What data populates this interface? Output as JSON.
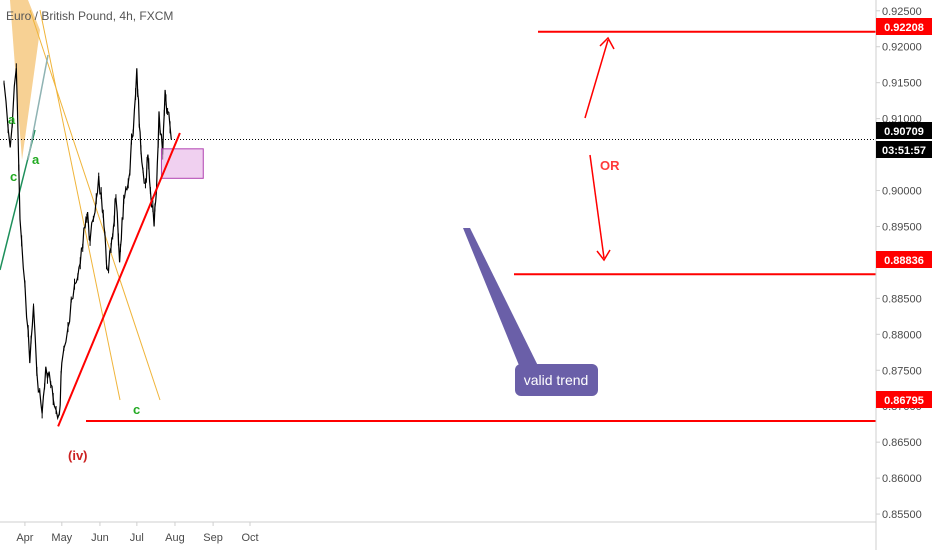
{
  "chart_data": {
    "type": "line",
    "title": "Euro / British Pound, 4h, FXCM",
    "symbol": "EURGBP",
    "interval": "4h",
    "source": "FXCM",
    "x_labels": [
      "Apr",
      "May",
      "Jun",
      "Jul",
      "Aug",
      "Sep",
      "Oct"
    ],
    "y_ticks": [
      "0.92500",
      "0.92000",
      "0.91500",
      "0.91000",
      "0.90000",
      "0.89500",
      "0.89000",
      "0.88500",
      "0.88000",
      "0.87500",
      "0.87000",
      "0.86500",
      "0.86000",
      "0.85500"
    ],
    "ylim": [
      0.85,
      0.9265
    ],
    "grid": false,
    "price_series": {
      "name": "EUR/GBP",
      "x": [
        "2019-03-15",
        "2019-03-20",
        "2019-03-25",
        "2019-03-28",
        "2019-04-01",
        "2019-04-05",
        "2019-04-08",
        "2019-04-12",
        "2019-04-15",
        "2019-04-18",
        "2019-04-22",
        "2019-04-25",
        "2019-04-29",
        "2019-05-01",
        "2019-05-06",
        "2019-05-10",
        "2019-05-14",
        "2019-05-17",
        "2019-05-20",
        "2019-05-22",
        "2019-05-24",
        "2019-05-28",
        "2019-05-31",
        "2019-06-03",
        "2019-06-05",
        "2019-06-07",
        "2019-06-10",
        "2019-06-12",
        "2019-06-14",
        "2019-06-17",
        "2019-06-19",
        "2019-06-21",
        "2019-06-24",
        "2019-06-26",
        "2019-06-28",
        "2019-07-01",
        "2019-07-03",
        "2019-07-05",
        "2019-07-08",
        "2019-07-10",
        "2019-07-12",
        "2019-07-15",
        "2019-07-17",
        "2019-07-19",
        "2019-07-22",
        "2019-07-24",
        "2019-07-26",
        "2019-07-29"
      ],
      "values": [
        0.915,
        0.906,
        0.917,
        0.896,
        0.887,
        0.876,
        0.884,
        0.872,
        0.869,
        0.8755,
        0.873,
        0.87,
        0.869,
        0.876,
        0.881,
        0.885,
        0.888,
        0.892,
        0.895,
        0.897,
        0.893,
        0.897,
        0.902,
        0.897,
        0.894,
        0.889,
        0.892,
        0.895,
        0.899,
        0.89,
        0.896,
        0.899,
        0.901,
        0.905,
        0.908,
        0.917,
        0.909,
        0.904,
        0.901,
        0.905,
        0.9,
        0.895,
        0.9,
        0.911,
        0.905,
        0.914,
        0.911,
        0.9071
      ]
    },
    "price_levels": [
      {
        "label": "0.92208",
        "value": 0.92208,
        "color": "#ff0000"
      },
      {
        "label": "0.90709",
        "value": 0.90709,
        "color": "#000000"
      },
      {
        "label": "0.88836",
        "value": 0.88836,
        "color": "#ff0000"
      },
      {
        "label": "0.86795",
        "value": 0.86795,
        "color": "#ff0000"
      }
    ],
    "countdown": "03:51:57",
    "trendline": {
      "from": [
        "2019-04-28",
        0.8672
      ],
      "to": [
        "2019-08-05",
        0.908
      ],
      "color": "#ff0000"
    },
    "zone": {
      "x": [
        "2019-07-21",
        "2019-08-24"
      ],
      "y": [
        0.9017,
        0.9058
      ],
      "color": "#e6b0e6"
    },
    "wave_labels": [
      {
        "text": "a",
        "color": "#22aa22"
      },
      {
        "text": "c",
        "color": "#22aa22"
      },
      {
        "text": "a",
        "color": "#22aa22"
      },
      {
        "text": "c",
        "color": "#22aa22"
      },
      {
        "text": "(iv)",
        "color": "#cc2222"
      }
    ],
    "annotations": {
      "or_text": "OR",
      "callout_text": "valid trend"
    },
    "colors": {
      "candles": "#000000",
      "accent_red": "#ff0000",
      "callout_fill": "#6a5fa8",
      "highlight_fill": "#f4c170",
      "wave_green": "#22aa22"
    }
  }
}
